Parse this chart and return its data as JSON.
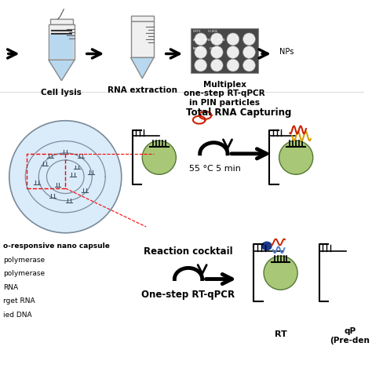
{
  "bg_color": "#ffffff",
  "top_labels": [
    "Cell lysis",
    "RNA extraction",
    "Multiplex\none-step RT-qPCR\nin PIN particles"
  ],
  "bottom_left_labels": [
    "o-responsive nano capsule",
    "polymerase",
    "polymerase",
    "RNA",
    "rget RNA",
    "ied DNA"
  ],
  "middle_labels": [
    "Total RNA Capturing",
    "55 °C 5 min",
    "Reaction cocktail",
    "One-step RT-qPCR"
  ],
  "bottom_right_labels": [
    "RT",
    "qP\n(Pre-den"
  ],
  "arrow_color": "#1a1a1a",
  "blue_light": "#b8d8f0",
  "green_circle": "#a8c878",
  "red_color": "#cc2200",
  "gold_color": "#d4a000",
  "blue_dark": "#1a3a8f",
  "blue_medium": "#5080cc",
  "chip_bg": "#484848"
}
